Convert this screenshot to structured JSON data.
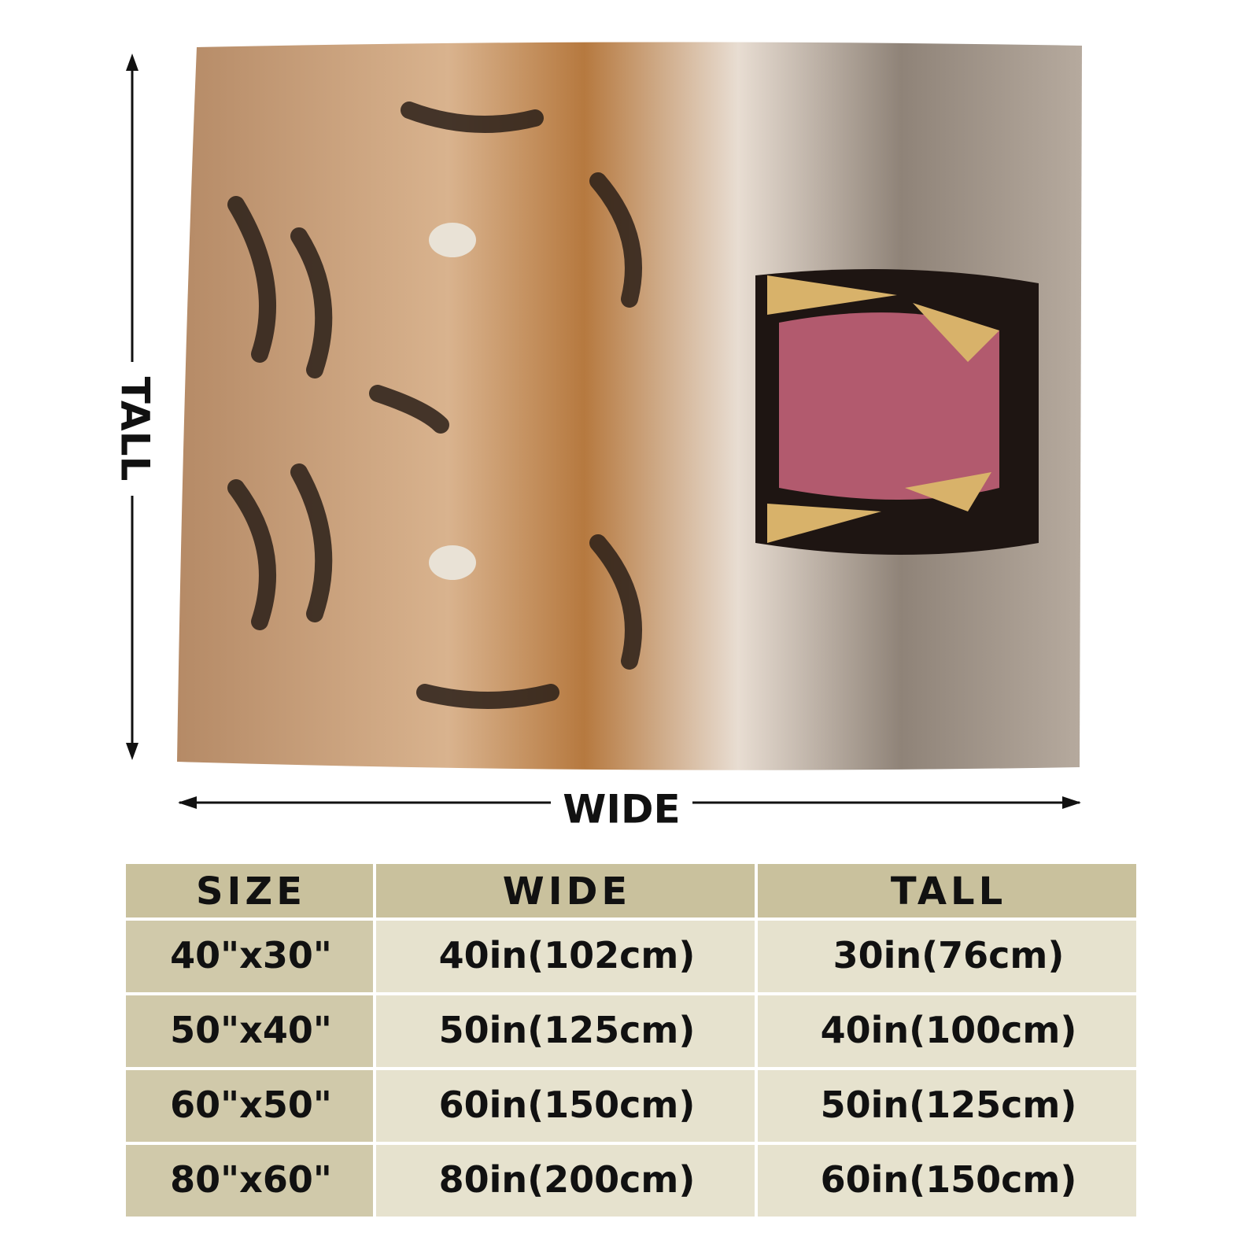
{
  "diagram": {
    "tall_label": "TALL",
    "wide_label": "WIDE"
  },
  "table": {
    "header": [
      "SIZE",
      "WIDE",
      "TALL"
    ],
    "rows": [
      [
        "40\"x30\"",
        "40in(102cm)",
        "30in(76cm)"
      ],
      [
        "50\"x40\"",
        "50in(125cm)",
        "40in(100cm)"
      ],
      [
        "60\"x50\"",
        "60in(150cm)",
        "50in(125cm)"
      ],
      [
        "80\"x60\"",
        "80in(200cm)",
        "60in(150cm)"
      ]
    ]
  }
}
